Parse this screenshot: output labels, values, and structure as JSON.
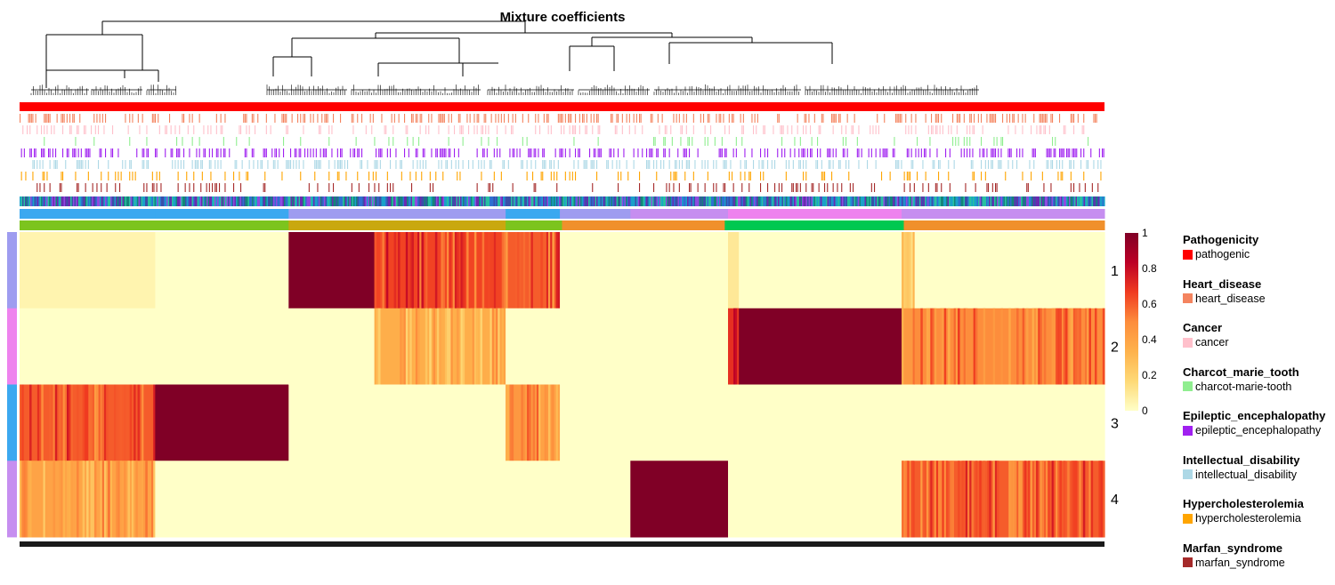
{
  "chart_data": {
    "type": "heatmap",
    "title": "Mixture coefficients",
    "rows": [
      "1",
      "2",
      "3",
      "4"
    ],
    "row_colors": [
      "#9e9cf0",
      "#ee82ee",
      "#3ba8f0",
      "#c68ef0"
    ],
    "colorbar": {
      "range": [
        0,
        1
      ],
      "ticks": [
        "0",
        "0.2",
        "0.4",
        "0.6",
        "0.8",
        "1"
      ],
      "colors": [
        "#ffffc8",
        "#fed976",
        "#feb24c",
        "#fd8d3c",
        "#f03b20",
        "#bd0026",
        "#800026"
      ]
    },
    "column_segments": [
      {
        "cluster": "3",
        "fraction": 0.125,
        "values": [
          0.05,
          0.0,
          0.6,
          0.4
        ]
      },
      {
        "cluster": "3",
        "fraction": 0.123,
        "values": [
          0.0,
          0.0,
          1.0,
          0.0
        ]
      },
      {
        "cluster": "1",
        "fraction": 0.079,
        "values": [
          1.0,
          0.0,
          0.0,
          0.0
        ]
      },
      {
        "cluster": "1",
        "fraction": 0.121,
        "values": [
          0.65,
          0.35,
          0.0,
          0.0
        ]
      },
      {
        "cluster": "3",
        "fraction": 0.05,
        "values": [
          0.6,
          0.0,
          0.45,
          0.0
        ]
      },
      {
        "cluster": "1",
        "fraction": 0.065,
        "values": [
          0.0,
          0.0,
          0.0,
          0.0
        ]
      },
      {
        "cluster": "4",
        "fraction": 0.09,
        "values": [
          0.0,
          0.0,
          0.0,
          1.0
        ]
      },
      {
        "cluster": "2",
        "fraction": 0.01,
        "values": [
          0.1,
          0.7,
          0.0,
          0.0
        ]
      },
      {
        "cluster": "2",
        "fraction": 0.15,
        "values": [
          0.0,
          1.0,
          0.0,
          0.0
        ]
      },
      {
        "cluster": "4",
        "fraction": 0.012,
        "values": [
          0.2,
          0.45,
          0.0,
          0.5
        ]
      },
      {
        "cluster": "4",
        "fraction": 0.175,
        "values": [
          0.0,
          0.5,
          0.0,
          0.6
        ]
      }
    ],
    "annotation_tracks": [
      {
        "name": "Pathogenicity",
        "color": "#ff0000",
        "density": 1.0
      },
      {
        "name": "Heart_disease",
        "color": "#f4845f",
        "density": 0.32
      },
      {
        "name": "Cancer",
        "color": "#ffc0cb",
        "density": 0.22
      },
      {
        "name": "Charcot_marie_tooth",
        "color": "#90ee90",
        "density": 0.1
      },
      {
        "name": "Epileptic_encephalopathy",
        "color": "#a020f0",
        "density": 0.35
      },
      {
        "name": "Intellectual_disability",
        "color": "#add8e6",
        "density": 0.3
      },
      {
        "name": "Hypercholesterolemia",
        "color": "#ffa500",
        "density": 0.15
      },
      {
        "name": "Marfan_syndrome",
        "color": "#a52a2a",
        "density": 0.16
      }
    ]
  },
  "legend": [
    {
      "title": "Pathogenicity",
      "label": "pathogenic",
      "color": "#ff0000"
    },
    {
      "title": "Heart_disease",
      "label": "heart_disease",
      "color": "#f4845f"
    },
    {
      "title": "Cancer",
      "label": "cancer",
      "color": "#ffc0cb"
    },
    {
      "title": "Charcot_marie_tooth",
      "label": "charcot-marie-tooth",
      "color": "#90ee90"
    },
    {
      "title": "Epileptic_encephalopathy",
      "label": "epileptic_encephalopathy",
      "color": "#a020f0"
    },
    {
      "title": "Intellectual_disability",
      "label": "intellectual_disability",
      "color": "#add8e6"
    },
    {
      "title": "Hypercholesterolemia",
      "label": "hypercholesterolemia",
      "color": "#ffa500"
    },
    {
      "title": "Marfan_syndrome",
      "label": "marfan_syndrome",
      "color": "#a52a2a"
    }
  ]
}
